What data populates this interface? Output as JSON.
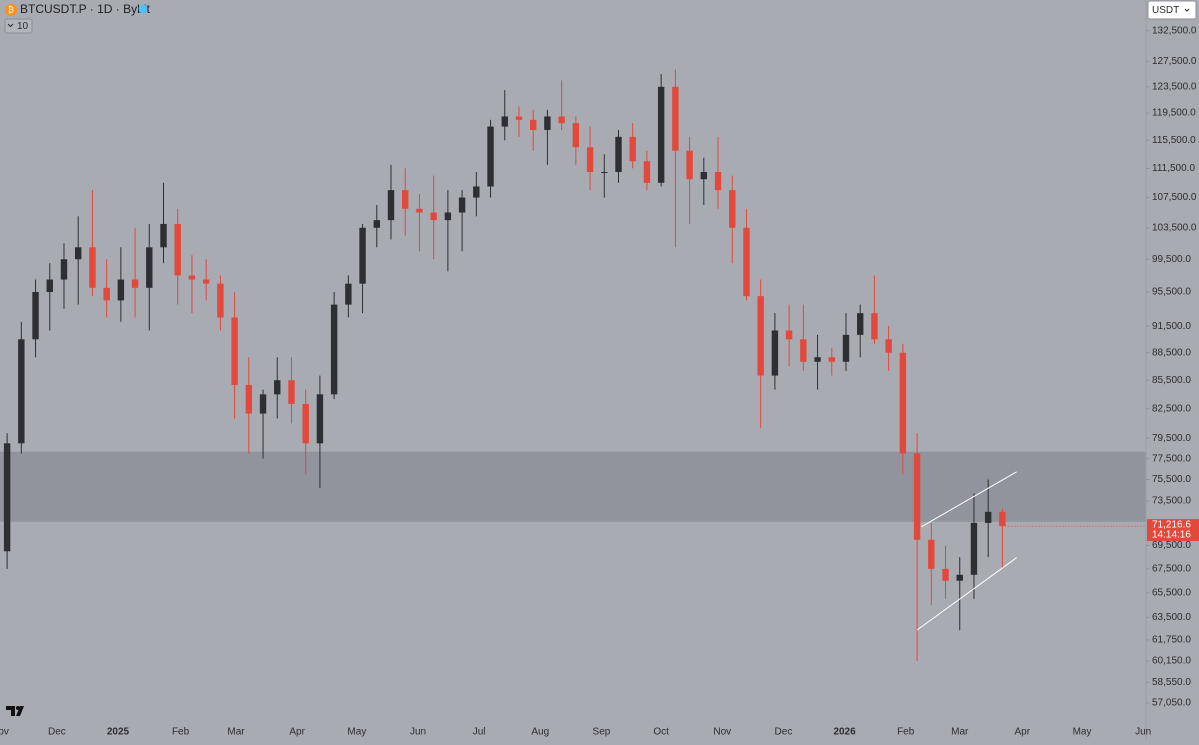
{
  "chart_data": {
    "type": "candlestick",
    "title": "BTCUSDT.P · 1D · Bybit",
    "indicator_count": "10",
    "currency": "USDT",
    "log_scale": true,
    "grid": false,
    "up_color": "#2e2f33",
    "down_color": "#e2483b",
    "background": "#a9abb3",
    "xlim": [
      0,
      80.6
    ],
    "ylim": [
      55850,
      137700
    ],
    "x": [
      0.5,
      1.5,
      2.5,
      3.5,
      4.5,
      5.5,
      6.5,
      7.5,
      8.5,
      9.5,
      10.5,
      11.5,
      12.5,
      13.5,
      14.5,
      15.5,
      16.5,
      17.5,
      18.5,
      19.5,
      20.5,
      21.5,
      22.5,
      23.5,
      24.5,
      25.5,
      26.5,
      27.5,
      28.5,
      29.5,
      30.5,
      31.5,
      32.5,
      33.5,
      34.5,
      35.5,
      36.5,
      37.5,
      38.5,
      39.5,
      40.5,
      41.5,
      42.5,
      43.5,
      44.5,
      45.5,
      46.5,
      47.5,
      48.5,
      49.5,
      50.5,
      51.5,
      52.5,
      53.5,
      54.5,
      55.5,
      56.5,
      57.5,
      58.5,
      59.5,
      60.5,
      61.5,
      62.5,
      63.5,
      64.5,
      65.5,
      66.5,
      67.5,
      68.5,
      69.5,
      70.5
    ],
    "open": [
      69000,
      79000,
      90000,
      95500,
      97000,
      99500,
      101000,
      96000,
      94500,
      97000,
      96000,
      101000,
      104000,
      97500,
      97000,
      96500,
      92500,
      85000,
      82000,
      84000,
      85500,
      83000,
      79000,
      84000,
      94000,
      96500,
      103500,
      104500,
      108500,
      106000,
      105500,
      104500,
      105500,
      107500,
      109000,
      117500,
      119000,
      118500,
      117000,
      119000,
      118000,
      114500,
      111000,
      111000,
      116000,
      112500,
      109500,
      123500,
      114000,
      110000,
      111000,
      108500,
      103500,
      95000,
      86000,
      91000,
      90000,
      87500,
      88000,
      87500,
      90500,
      93000,
      90000,
      88500,
      78000,
      70000,
      67500,
      66500,
      67000,
      71500,
      72500
    ],
    "high": [
      80000,
      92000,
      97000,
      99000,
      101500,
      105000,
      108500,
      99500,
      101000,
      103500,
      104000,
      109500,
      106000,
      100000,
      99500,
      97500,
      95500,
      88000,
      84500,
      88000,
      88000,
      84500,
      86000,
      95500,
      97500,
      104000,
      106500,
      112000,
      111500,
      108000,
      110500,
      108500,
      108500,
      111000,
      118500,
      123000,
      120500,
      120000,
      120000,
      124500,
      119000,
      117500,
      113500,
      117000,
      118000,
      114000,
      125500,
      126200,
      116000,
      113000,
      116000,
      110500,
      106000,
      97000,
      93000,
      94000,
      94000,
      90500,
      89000,
      93000,
      94000,
      97500,
      91500,
      89500,
      80000,
      71500,
      69500,
      68500,
      74200,
      75500,
      72800
    ],
    "low": [
      67500,
      78000,
      88000,
      91000,
      93500,
      94000,
      95000,
      92500,
      92000,
      92500,
      91000,
      99000,
      94000,
      93000,
      94500,
      91000,
      81500,
      78000,
      77500,
      81500,
      81000,
      76000,
      74700,
      83500,
      92500,
      93000,
      101000,
      102000,
      102500,
      100500,
      99500,
      98000,
      100500,
      105000,
      107500,
      115500,
      116000,
      114000,
      112000,
      117000,
      112000,
      108500,
      107500,
      109500,
      111500,
      108500,
      109000,
      101000,
      104000,
      106500,
      106000,
      99000,
      94500,
      80500,
      84500,
      87000,
      86500,
      84500,
      86000,
      86500,
      88000,
      89500,
      86500,
      76000,
      60150,
      64500,
      65000,
      62500,
      65000,
      68500,
      67500
    ],
    "close": [
      79000,
      90000,
      95500,
      97000,
      99500,
      101000,
      96000,
      94500,
      97000,
      96000,
      101000,
      104000,
      97500,
      97000,
      96500,
      92500,
      85000,
      82000,
      84000,
      85500,
      83000,
      79000,
      84000,
      94000,
      96500,
      103500,
      104500,
      108500,
      106000,
      105500,
      104500,
      105500,
      107500,
      109000,
      117500,
      119000,
      118500,
      117000,
      119000,
      118000,
      114500,
      111000,
      111000,
      116000,
      112500,
      109500,
      123500,
      114000,
      110000,
      111000,
      108500,
      103500,
      95000,
      86000,
      91000,
      90000,
      87500,
      88000,
      87500,
      90500,
      93000,
      90000,
      88500,
      78000,
      70000,
      67500,
      66500,
      67000,
      71500,
      72500,
      71216.6
    ],
    "zone": {
      "from": 71600,
      "to": 78170,
      "color": "#8a8c94"
    },
    "trendlines": [
      {
        "x": [
          64.8,
          71.5
        ],
        "y": [
          71150,
          76230
        ],
        "color": "#ffffff"
      },
      {
        "x": [
          64.5,
          71.5
        ],
        "y": [
          62520,
          68450
        ],
        "color": "#ffffff"
      }
    ],
    "last_price": {
      "value": 71216.6,
      "label": "71,216.6"
    },
    "countdown": "14:14:16",
    "yticks": [
      {
        "value": 132500,
        "label": "132,500.0"
      },
      {
        "value": 127500,
        "label": "127,500.0"
      },
      {
        "value": 123500,
        "label": "123,500.0"
      },
      {
        "value": 119500,
        "label": "119,500.0"
      },
      {
        "value": 115500,
        "label": "115,500.0"
      },
      {
        "value": 111500,
        "label": "111,500.0"
      },
      {
        "value": 107500,
        "label": "107,500.0"
      },
      {
        "value": 103500,
        "label": "103,500.0"
      },
      {
        "value": 99500,
        "label": "99,500.0"
      },
      {
        "value": 95500,
        "label": "95,500.0"
      },
      {
        "value": 91500,
        "label": "91,500.0"
      },
      {
        "value": 88500,
        "label": "88,500.0"
      },
      {
        "value": 85500,
        "label": "85,500.0"
      },
      {
        "value": 82500,
        "label": "82,500.0"
      },
      {
        "value": 79500,
        "label": "79,500.0"
      },
      {
        "value": 77500,
        "label": "77,500.0"
      },
      {
        "value": 75500,
        "label": "75,500.0"
      },
      {
        "value": 73500,
        "label": "73,500.0"
      },
      {
        "value": 69500,
        "label": "69,500.0"
      },
      {
        "value": 67500,
        "label": "67,500.0"
      },
      {
        "value": 65500,
        "label": "65,500.0"
      },
      {
        "value": 63500,
        "label": "63,500.0"
      },
      {
        "value": 61750,
        "label": "61,750.0"
      },
      {
        "value": 60150,
        "label": "60,150.0"
      },
      {
        "value": 58550,
        "label": "58,550.0"
      },
      {
        "value": 57050,
        "label": "57,050.0"
      }
    ],
    "xticks": [
      {
        "value": 0,
        "label": "Nov"
      },
      {
        "value": 4.0,
        "label": "Dec"
      },
      {
        "value": 8.3,
        "label": "2025"
      },
      {
        "value": 12.7,
        "label": "Feb"
      },
      {
        "value": 16.6,
        "label": "Mar"
      },
      {
        "value": 20.9,
        "label": "Apr"
      },
      {
        "value": 25.1,
        "label": "May"
      },
      {
        "value": 29.4,
        "label": "Jun"
      },
      {
        "value": 33.7,
        "label": "Jul"
      },
      {
        "value": 38.0,
        "label": "Aug"
      },
      {
        "value": 42.3,
        "label": "Sep"
      },
      {
        "value": 46.5,
        "label": "Oct"
      },
      {
        "value": 50.8,
        "label": "Nov"
      },
      {
        "value": 55.1,
        "label": "Dec"
      },
      {
        "value": 59.4,
        "label": "2026"
      },
      {
        "value": 63.7,
        "label": "Feb"
      },
      {
        "value": 67.5,
        "label": "Mar"
      },
      {
        "value": 71.9,
        "label": "Apr"
      },
      {
        "value": 76.1,
        "label": "May"
      },
      {
        "value": 80.4,
        "label": "Jun"
      }
    ]
  }
}
